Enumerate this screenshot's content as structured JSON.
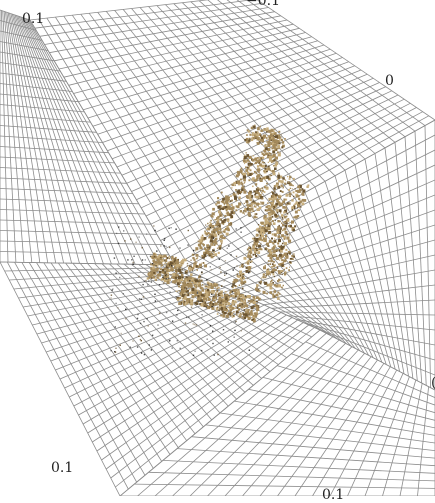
{
  "plot": {
    "tick_labels": {
      "top_left": "0.1",
      "top_center": "−0.1",
      "top_right": "0",
      "right_edge": "(",
      "bottom_left": "0.1",
      "bottom_center": "0.1"
    },
    "colors": {
      "background": "#ffffff",
      "grid": "#8c8c8c",
      "points_main": "#a48a5c",
      "points_dark": "#6b5532",
      "points_light": "#c6ad7d",
      "noise": "#222222"
    }
  }
}
